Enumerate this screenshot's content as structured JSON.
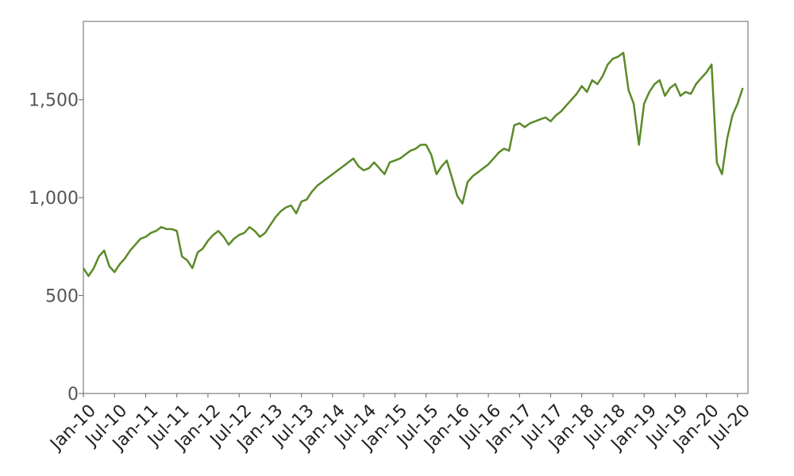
{
  "chart_data": {
    "type": "line",
    "title": "",
    "xlabel": "",
    "ylabel": "",
    "xlim": [
      "2010-01",
      "2020-09"
    ],
    "ylim": [
      0,
      1900
    ],
    "y_ticks": [
      {
        "value": 0,
        "label": "0"
      },
      {
        "value": 500,
        "label": "500"
      },
      {
        "value": 1000,
        "label": "1,000"
      },
      {
        "value": 1500,
        "label": "1,500"
      }
    ],
    "x_ticks": [
      {
        "date": "2010-01",
        "label": "Jan-10"
      },
      {
        "date": "2010-07",
        "label": "Jul-10"
      },
      {
        "date": "2011-01",
        "label": "Jan-11"
      },
      {
        "date": "2011-07",
        "label": "Jul-11"
      },
      {
        "date": "2012-01",
        "label": "Jan-12"
      },
      {
        "date": "2012-07",
        "label": "Jul-12"
      },
      {
        "date": "2013-01",
        "label": "Jan-13"
      },
      {
        "date": "2013-07",
        "label": "Jul-13"
      },
      {
        "date": "2014-01",
        "label": "Jan-14"
      },
      {
        "date": "2014-07",
        "label": "Jul-14"
      },
      {
        "date": "2015-01",
        "label": "Jan-15"
      },
      {
        "date": "2015-07",
        "label": "Jul-15"
      },
      {
        "date": "2016-01",
        "label": "Jan-16"
      },
      {
        "date": "2016-07",
        "label": "Jul-16"
      },
      {
        "date": "2017-01",
        "label": "Jan-17"
      },
      {
        "date": "2017-07",
        "label": "Jul-17"
      },
      {
        "date": "2018-01",
        "label": "Jan-18"
      },
      {
        "date": "2018-07",
        "label": "Jul-18"
      },
      {
        "date": "2019-01",
        "label": "Jan-19"
      },
      {
        "date": "2019-07",
        "label": "Jul-19"
      },
      {
        "date": "2020-01",
        "label": "Jan-20"
      },
      {
        "date": "2020-07",
        "label": "Jul-20"
      }
    ],
    "grid": false,
    "legend": "none",
    "series": [
      {
        "color": "#5a8a28",
        "x": [
          "2010-01",
          "2010-02",
          "2010-03",
          "2010-04",
          "2010-05",
          "2010-06",
          "2010-07",
          "2010-08",
          "2010-09",
          "2010-10",
          "2010-11",
          "2010-12",
          "2011-01",
          "2011-02",
          "2011-03",
          "2011-04",
          "2011-05",
          "2011-06",
          "2011-07",
          "2011-08",
          "2011-09",
          "2011-10",
          "2011-11",
          "2011-12",
          "2012-01",
          "2012-02",
          "2012-03",
          "2012-04",
          "2012-05",
          "2012-06",
          "2012-07",
          "2012-08",
          "2012-09",
          "2012-10",
          "2012-11",
          "2012-12",
          "2013-01",
          "2013-02",
          "2013-03",
          "2013-04",
          "2013-05",
          "2013-06",
          "2013-07",
          "2013-08",
          "2013-09",
          "2013-10",
          "2013-11",
          "2013-12",
          "2014-01",
          "2014-02",
          "2014-03",
          "2014-04",
          "2014-05",
          "2014-06",
          "2014-07",
          "2014-08",
          "2014-09",
          "2014-10",
          "2014-11",
          "2014-12",
          "2015-01",
          "2015-02",
          "2015-03",
          "2015-04",
          "2015-05",
          "2015-06",
          "2015-07",
          "2015-08",
          "2015-09",
          "2015-10",
          "2015-11",
          "2015-12",
          "2016-01",
          "2016-02",
          "2016-03",
          "2016-04",
          "2016-05",
          "2016-06",
          "2016-07",
          "2016-08",
          "2016-09",
          "2016-10",
          "2016-11",
          "2016-12",
          "2017-01",
          "2017-02",
          "2017-03",
          "2017-04",
          "2017-05",
          "2017-06",
          "2017-07",
          "2017-08",
          "2017-09",
          "2017-10",
          "2017-11",
          "2017-12",
          "2018-01",
          "2018-02",
          "2018-03",
          "2018-04",
          "2018-05",
          "2018-06",
          "2018-07",
          "2018-08",
          "2018-09",
          "2018-10",
          "2018-11",
          "2018-12",
          "2019-01",
          "2019-02",
          "2019-03",
          "2019-04",
          "2019-05",
          "2019-06",
          "2019-07",
          "2019-08",
          "2019-09",
          "2019-10",
          "2019-11",
          "2019-12",
          "2020-01",
          "2020-02",
          "2020-03",
          "2020-04",
          "2020-05",
          "2020-06",
          "2020-07",
          "2020-08"
        ],
        "y": [
          640,
          600,
          640,
          700,
          730,
          650,
          620,
          660,
          690,
          730,
          760,
          790,
          800,
          820,
          830,
          850,
          840,
          840,
          830,
          700,
          680,
          640,
          720,
          740,
          780,
          810,
          830,
          800,
          760,
          790,
          810,
          820,
          850,
          830,
          800,
          820,
          860,
          900,
          930,
          950,
          960,
          920,
          980,
          990,
          1030,
          1060,
          1080,
          1100,
          1120,
          1140,
          1160,
          1180,
          1200,
          1160,
          1140,
          1150,
          1180,
          1150,
          1120,
          1180,
          1190,
          1200,
          1220,
          1240,
          1250,
          1270,
          1270,
          1220,
          1120,
          1160,
          1190,
          1100,
          1010,
          970,
          1080,
          1110,
          1130,
          1150,
          1170,
          1200,
          1230,
          1250,
          1240,
          1370,
          1380,
          1360,
          1380,
          1390,
          1400,
          1410,
          1390,
          1420,
          1440,
          1470,
          1500,
          1530,
          1570,
          1540,
          1600,
          1580,
          1620,
          1680,
          1710,
          1720,
          1740,
          1550,
          1480,
          1270,
          1480,
          1540,
          1580,
          1600,
          1520,
          1560,
          1580,
          1520,
          1540,
          1530,
          1580,
          1610,
          1640,
          1680,
          1180,
          1120,
          1300,
          1420,
          1480,
          1560
        ]
      }
    ]
  }
}
